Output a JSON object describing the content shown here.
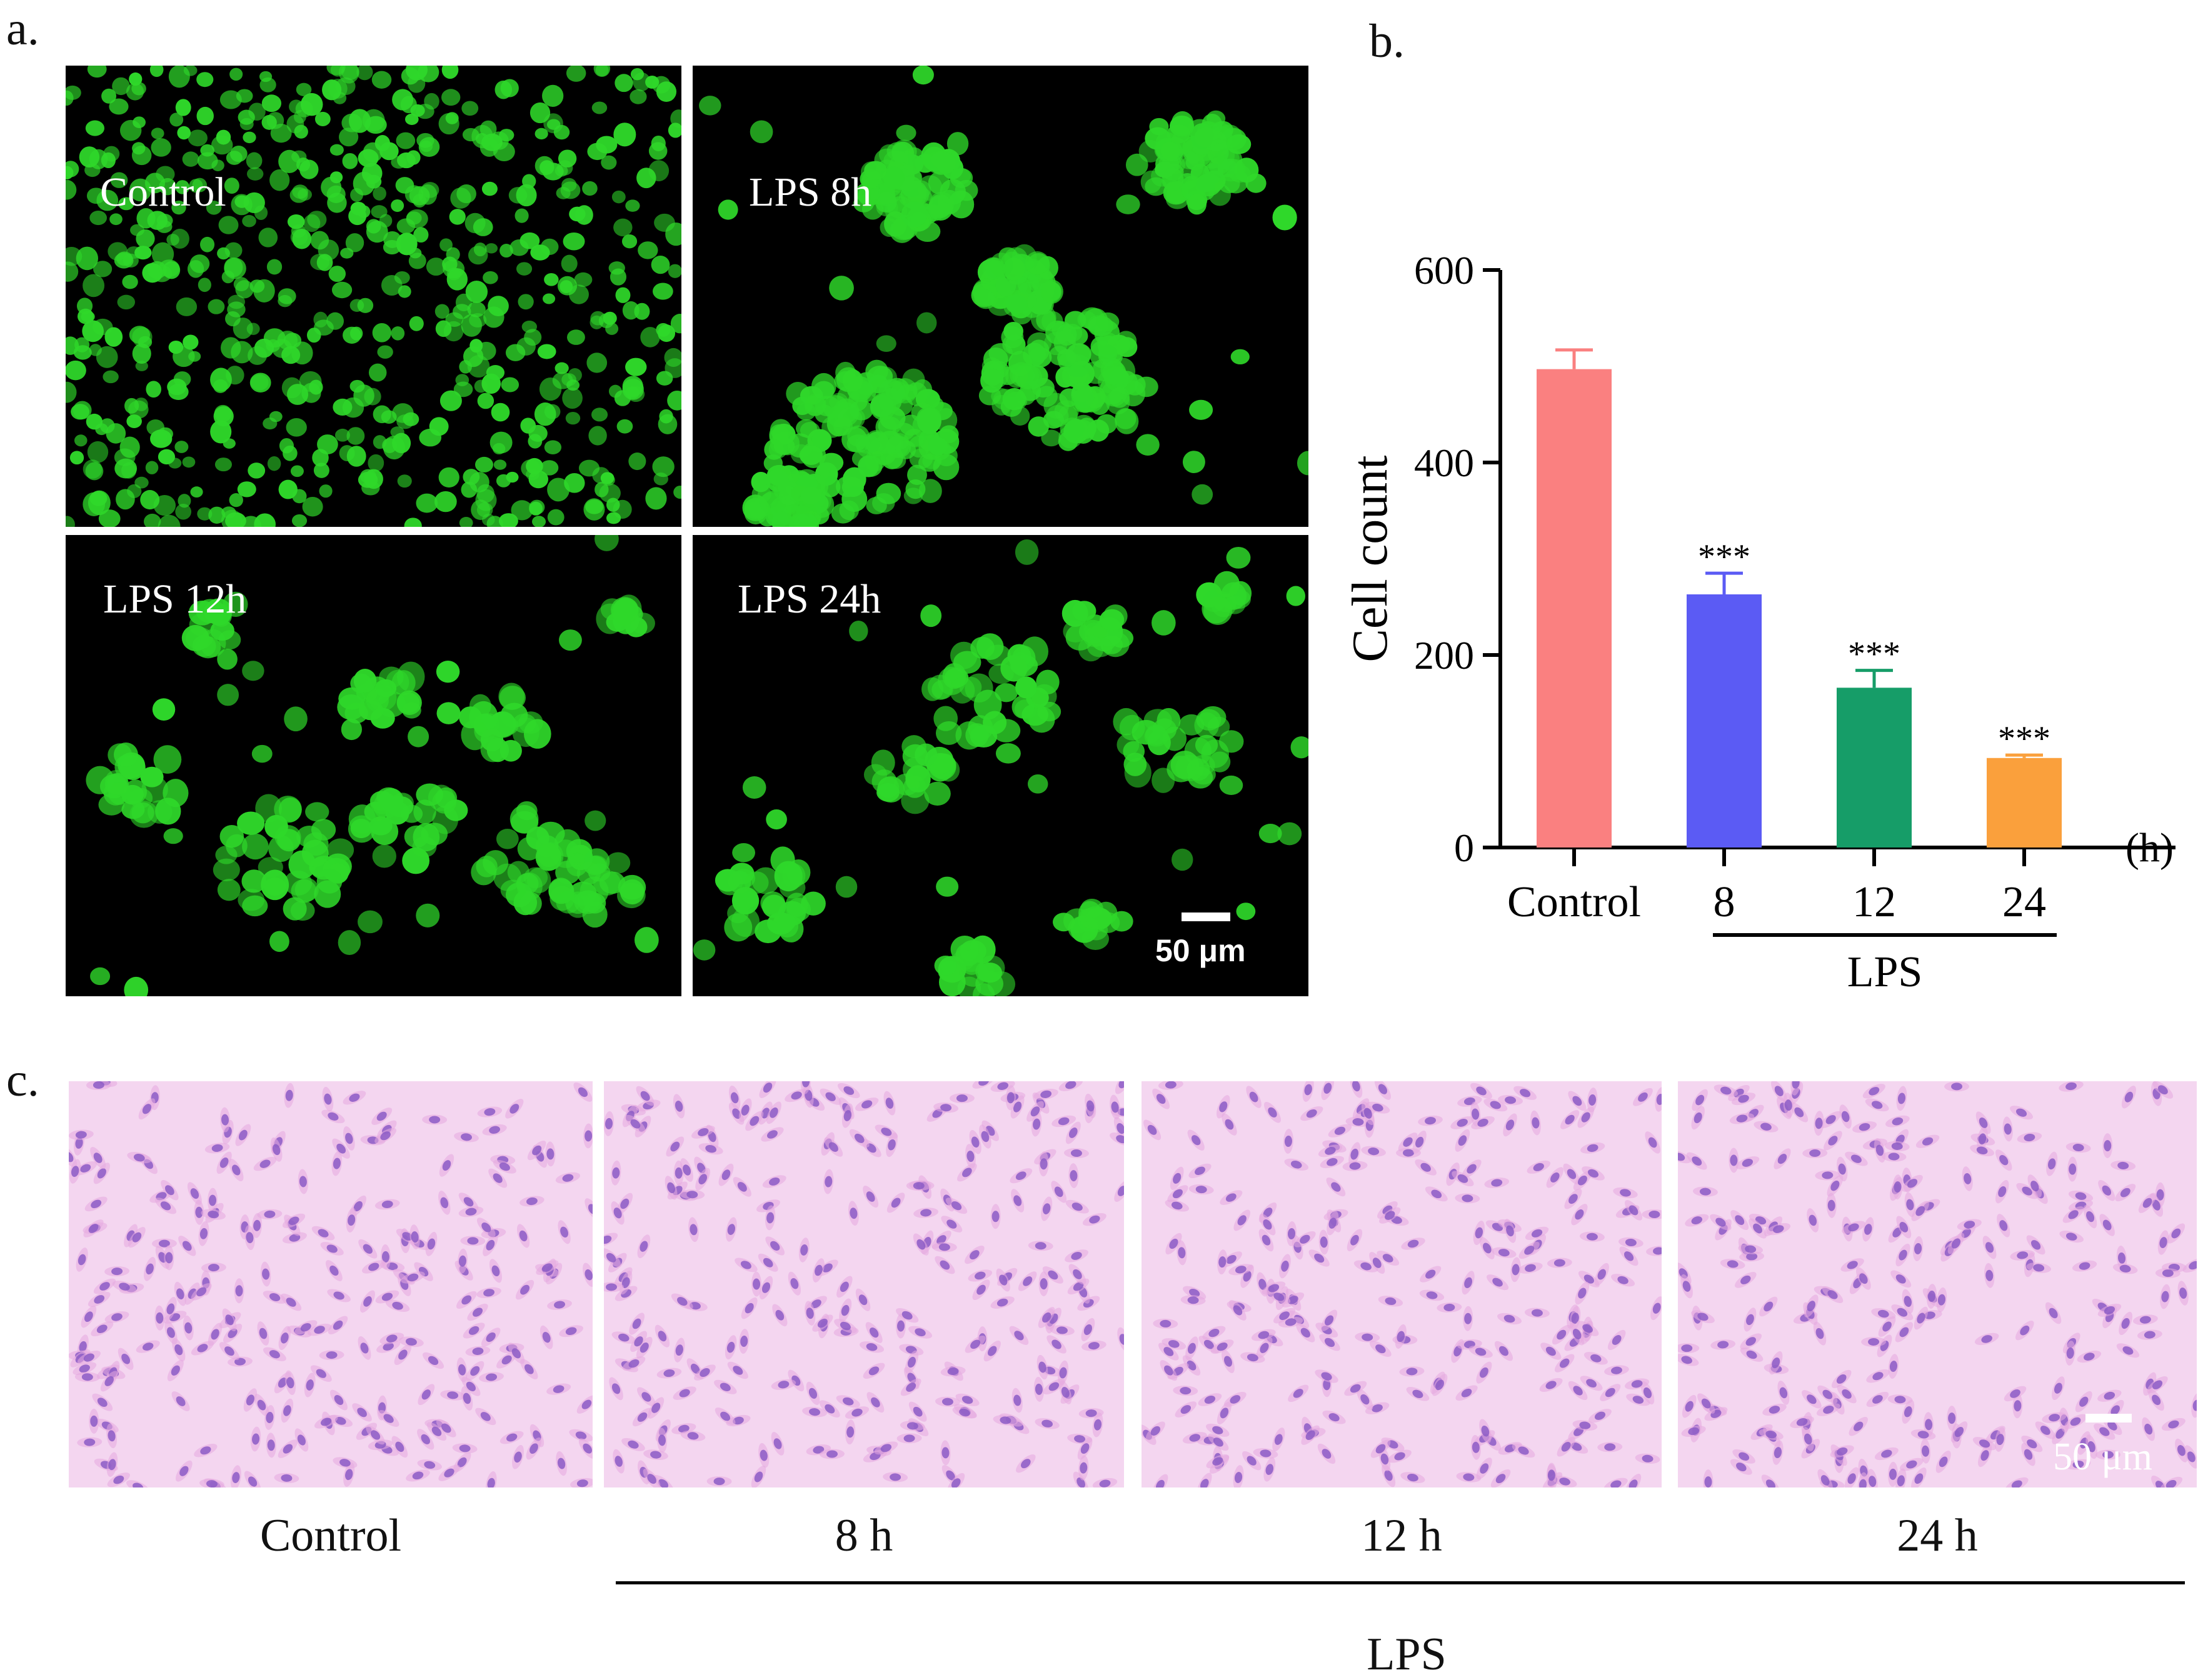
{
  "panel_a": {
    "letter": "a.",
    "images": [
      {
        "label": "Control"
      },
      {
        "label": "LPS 8h"
      },
      {
        "label": "LPS 12h"
      },
      {
        "label": "LPS 24h"
      }
    ],
    "scale_bar": "50 μm",
    "colors": {
      "fluorescence": "#2fd82a",
      "background": "#000000"
    }
  },
  "panel_b": {
    "letter": "b.",
    "chart_data": {
      "type": "bar",
      "categories": [
        "Control",
        "8",
        "12",
        "24"
      ],
      "values": [
        497,
        263,
        166,
        93
      ],
      "errors": [
        20,
        22,
        18,
        3
      ],
      "significance": [
        "",
        "***",
        "***",
        "***"
      ],
      "colors": [
        "#fa8080",
        "#5b5bf4",
        "#169d68",
        "#faa03c"
      ],
      "xlabel": "",
      "ylabel": "Cell count",
      "x_unit": "(h)",
      "group_label": "LPS",
      "ylim": [
        0,
        600
      ],
      "yticks": [
        "0",
        "200",
        "400",
        "600"
      ],
      "grid": false
    }
  },
  "panel_c": {
    "letter": "c.",
    "captions": [
      "Control",
      "8 h",
      "12 h",
      "24 h"
    ],
    "group_label": "LPS",
    "scale_bar": "50 μm",
    "colors": {
      "background": "#f4d6f0",
      "nuclei": "#8c5cc6"
    }
  }
}
